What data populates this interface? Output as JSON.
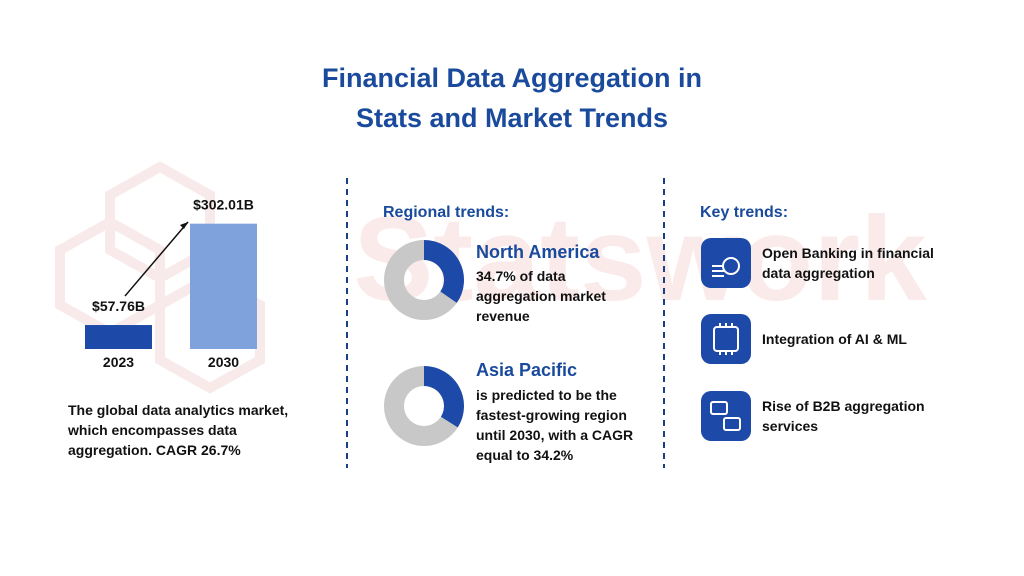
{
  "header": {
    "title": "Financial Data Aggregation in Stats and Market Trends"
  },
  "watermark": "Statswork",
  "chart_data": [
    {
      "type": "bar",
      "categories": [
        "2023",
        "2030"
      ],
      "values": [
        57.76,
        302.01
      ],
      "value_labels": [
        "$57.76B",
        "$302.01B"
      ],
      "colors": [
        "#1d4aa8",
        "#7fa2dc"
      ]
    },
    {
      "type": "pie",
      "values": [
        34.7
      ],
      "color": "#1d4aa8"
    },
    {
      "type": "pie",
      "values": [
        34
      ],
      "color": "#1d4aa8"
    }
  ],
  "market_note": "The global data analytics market, which encompasses data aggregation. CAGR 26.7%",
  "regional": {
    "heading": "Regional trends:",
    "items": [
      {
        "name": "North America",
        "description": "34.7% of data aggregation market revenue"
      },
      {
        "name": "Asia Pacific",
        "description": "is predicted to be the fastest-growing region until 2030, with a CAGR equal to 34.2%"
      }
    ]
  },
  "key_trends": {
    "heading": "Key trends:",
    "items": [
      "Open Banking in financial data aggregation",
      "Integration of AI & ML",
      "Rise of B2B aggregation services"
    ]
  }
}
